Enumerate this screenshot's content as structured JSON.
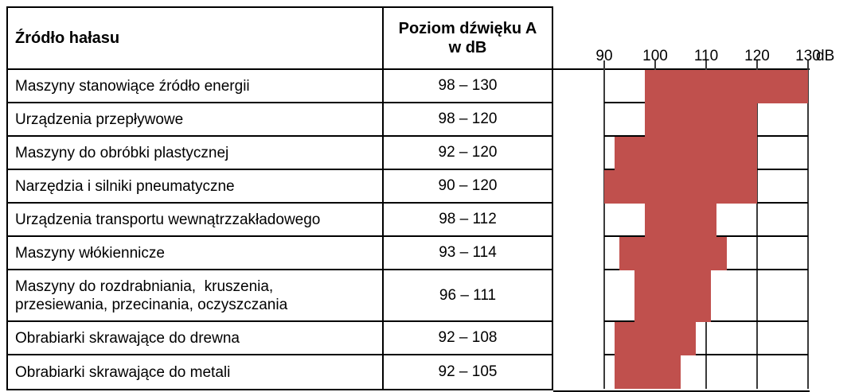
{
  "table": {
    "header": {
      "source_col": "Źródło hałasu",
      "level_col": "Poziom dźwięku A\nw dB"
    },
    "rows": [
      {
        "label": "Maszyny stanowiące źródło energii",
        "range": "98 – 130"
      },
      {
        "label": "Urządzenia przepływowe",
        "range": "98 – 120"
      },
      {
        "label": "Maszyny do obróbki plastycznej",
        "range": "92 – 120"
      },
      {
        "label": "Narzędzia i silniki pneumatyczne",
        "range": "90 – 120"
      },
      {
        "label": "Urządzenia transportu wewnątrzzakładowego",
        "range": "98 – 112"
      },
      {
        "label": "Maszyny włókiennicze",
        "range": "93 – 114"
      },
      {
        "label": "Maszyny do rozdrabniania,  kruszenia,\nprzesiewania, przecinania, oczyszczania",
        "range": "96 – 111"
      },
      {
        "label": "Obrabiarki skrawające do drewna",
        "range": "92 – 108"
      },
      {
        "label": "Obrabiarki skrawające do metali",
        "range": "92 – 105"
      }
    ]
  },
  "chart_data": {
    "type": "bar",
    "orientation": "horizontal",
    "title": "",
    "categories": [
      "Maszyny stanowiące źródło energii",
      "Urządzenia przepływowe",
      "Maszyny do obróbki plastycznej",
      "Narzędzia i silniki pneumatyczne",
      "Urządzenia transportu wewnątrzzakładowego",
      "Maszyny włókiennicze",
      "Maszyny do rozdrabniania, kruszenia, przesiewania, przecinania, oczyszczania",
      "Obrabiarki skrawające do drewna",
      "Obrabiarki skrawające do metali"
    ],
    "series": [
      {
        "name": "Poziom dźwięku A w dB",
        "ranges": [
          [
            98,
            130
          ],
          [
            98,
            120
          ],
          [
            92,
            120
          ],
          [
            90,
            120
          ],
          [
            98,
            112
          ],
          [
            93,
            114
          ],
          [
            96,
            111
          ],
          [
            92,
            108
          ],
          [
            92,
            105
          ]
        ]
      }
    ],
    "xticks": [
      90,
      100,
      110,
      120,
      130
    ],
    "xtick_labels": [
      "90",
      "100",
      "110",
      "120",
      "130"
    ],
    "unit_label": "dB",
    "xlim": [
      80,
      130
    ],
    "grid": true,
    "legend": false,
    "bar_color": "#C0504D",
    "line_color": "#000000"
  }
}
